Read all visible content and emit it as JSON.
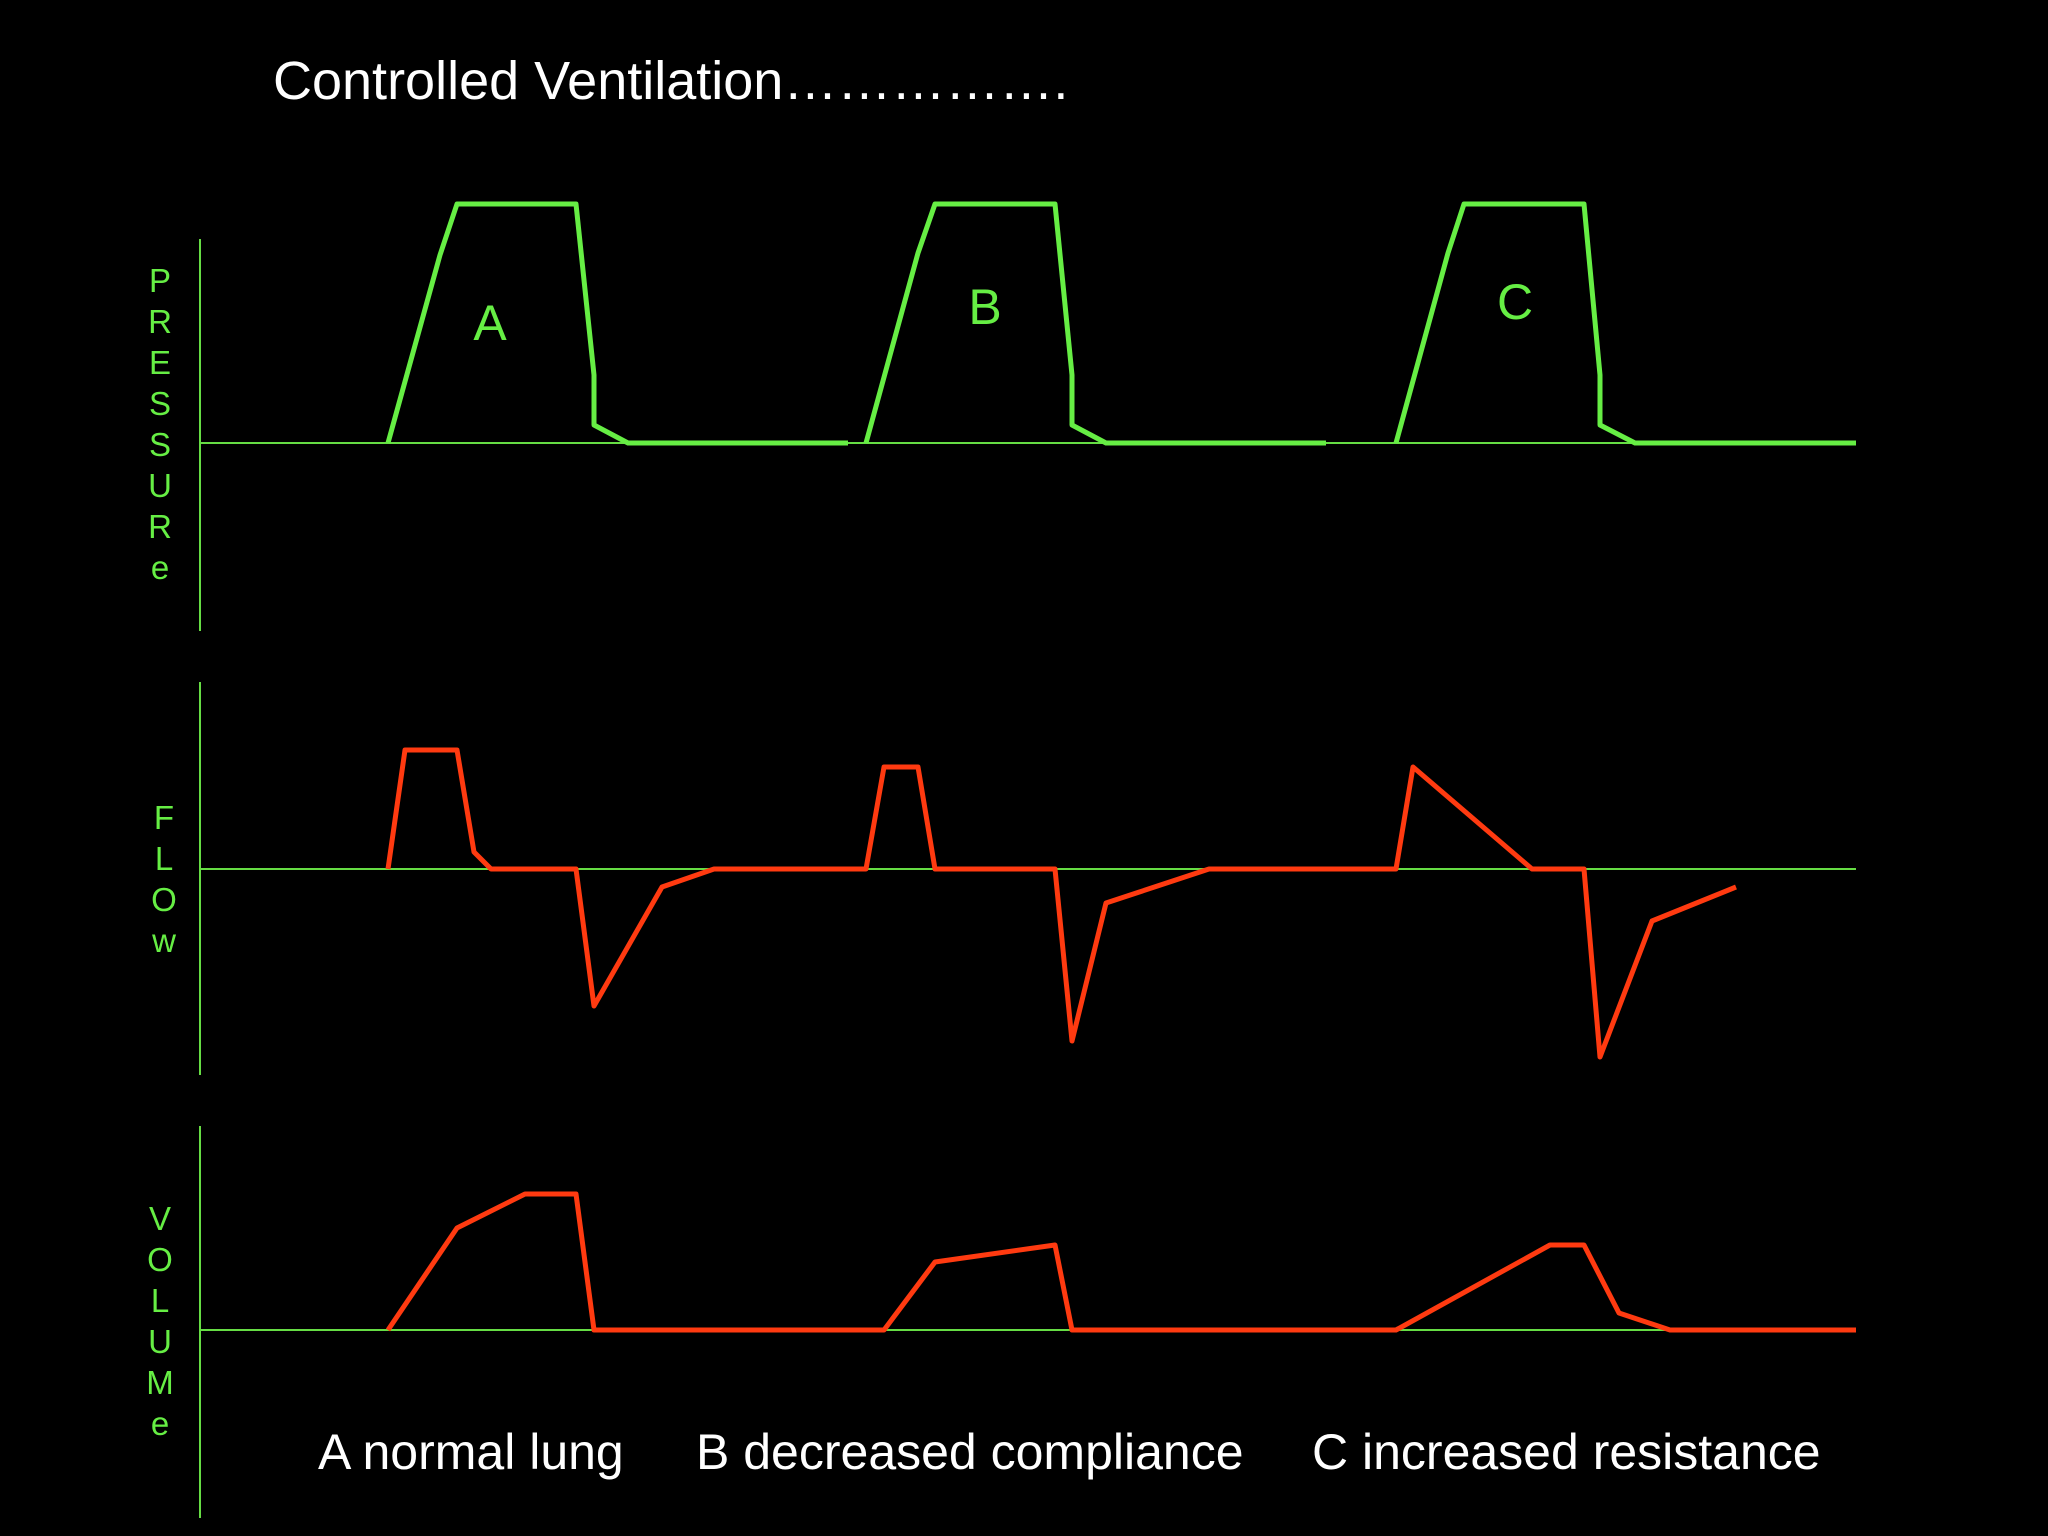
{
  "title": "Controlled Ventilation…………….",
  "colors": {
    "background": "#000000",
    "axis": "#66dd44",
    "pressure_wave": "#66ee44",
    "flow_wave": "#ff3a10",
    "volume_wave": "#ff3a10",
    "axis_labels": "#66ee44",
    "text": "#ffffff"
  },
  "panels": {
    "pressure": {
      "label": "PRESSURe"
    },
    "flow": {
      "label": "FLOw"
    },
    "volume": {
      "label": "VOLUMe"
    }
  },
  "breath_labels": [
    "A",
    "B",
    "C"
  ],
  "captions": {
    "a": "A  normal lung",
    "b": "B  decreased compliance",
    "c": "C increased resistance"
  }
}
